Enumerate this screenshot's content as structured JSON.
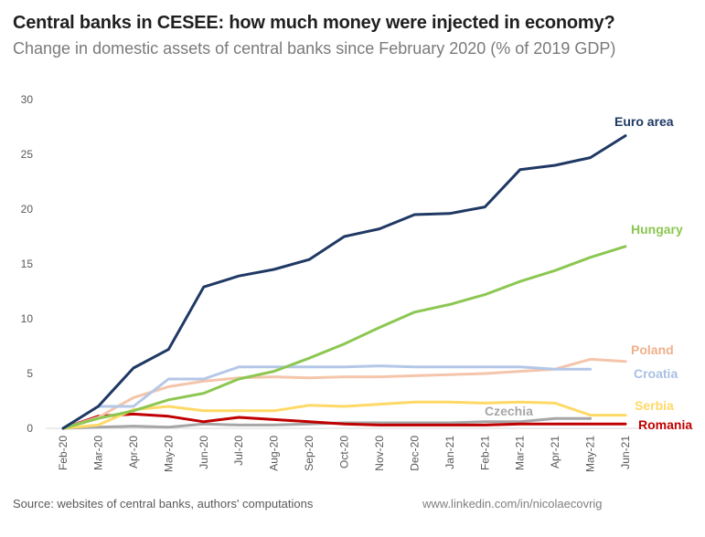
{
  "chart_data": {
    "type": "line",
    "title": "Central banks in CESEE: how much money were injected in economy?",
    "subtitle": "Change in domestic assets of central banks since February 2020 (% of 2019 GDP)",
    "xlabel": "",
    "ylabel": "",
    "ylim": [
      0,
      30
    ],
    "yticks": [
      "0",
      "5",
      "10",
      "15",
      "20",
      "25",
      "30"
    ],
    "ytick_values": [
      0,
      5,
      10,
      15,
      20,
      25,
      30
    ],
    "grid": false,
    "legend": "inline-right",
    "categories": [
      "Feb-20",
      "Mar-20",
      "Apr-20",
      "May-20",
      "Jun-20",
      "Jul-20",
      "Aug-20",
      "Sep-20",
      "Oct-20",
      "Nov-20",
      "Dec-20",
      "Jan-21",
      "Feb-21",
      "Mar-21",
      "Apr-21",
      "May-21",
      "Jun-21"
    ],
    "series": [
      {
        "name": "Euro area",
        "color": "#1f3864",
        "label_color": "#1f3864",
        "values": [
          0,
          2.0,
          5.5,
          7.2,
          12.9,
          13.9,
          14.5,
          15.4,
          17.5,
          18.2,
          19.5,
          19.6,
          20.2,
          23.6,
          24.0,
          24.7,
          26.7
        ]
      },
      {
        "name": "Hungary",
        "color": "#8cc751",
        "label_color": "#8cc751",
        "values": [
          0,
          0.9,
          1.6,
          2.6,
          3.2,
          4.5,
          5.2,
          6.4,
          7.7,
          9.2,
          10.6,
          11.3,
          12.2,
          13.4,
          14.4,
          15.6,
          16.6
        ]
      },
      {
        "name": "Poland",
        "color": "#f4c5ab",
        "label_color": "#f0b08c",
        "values": [
          0,
          1.0,
          2.8,
          3.8,
          4.3,
          4.6,
          4.7,
          4.6,
          4.7,
          4.7,
          4.8,
          4.9,
          5.0,
          5.2,
          5.4,
          6.3,
          6.1
        ]
      },
      {
        "name": "Croatia",
        "color": "#b4c7e7",
        "label_color": "#a9c0e4",
        "values": [
          0,
          2.0,
          2.0,
          4.5,
          4.5,
          5.6,
          5.6,
          5.6,
          5.6,
          5.7,
          5.6,
          5.6,
          5.6,
          5.6,
          5.4,
          5.4,
          null
        ]
      },
      {
        "name": "Serbia",
        "color": "#ffd966",
        "label_color": "#ffd966",
        "values": [
          0,
          0.3,
          1.7,
          2.0,
          1.6,
          1.6,
          1.6,
          2.1,
          2.0,
          2.2,
          2.4,
          2.4,
          2.3,
          2.4,
          2.3,
          1.2,
          1.2
        ]
      },
      {
        "name": "Czechia",
        "color": "#a6a6a6",
        "label_color": "#a6a6a6",
        "values": [
          0,
          0.1,
          0.2,
          0.1,
          0.4,
          0.3,
          0.3,
          0.4,
          0.5,
          0.5,
          0.5,
          0.5,
          0.6,
          0.6,
          0.9,
          0.9,
          null
        ]
      },
      {
        "name": "Romania",
        "color": "#c00000",
        "label_color": "#c00000",
        "values": [
          0,
          1.1,
          1.3,
          1.1,
          0.6,
          1.0,
          0.8,
          0.6,
          0.4,
          0.3,
          0.3,
          0.3,
          0.3,
          0.4,
          0.4,
          0.4,
          0.4
        ]
      }
    ]
  },
  "footer": {
    "source": "Source: websites of central banks, authors' computations",
    "credit": "www.linkedin.com/in/nicolaecovrig"
  }
}
